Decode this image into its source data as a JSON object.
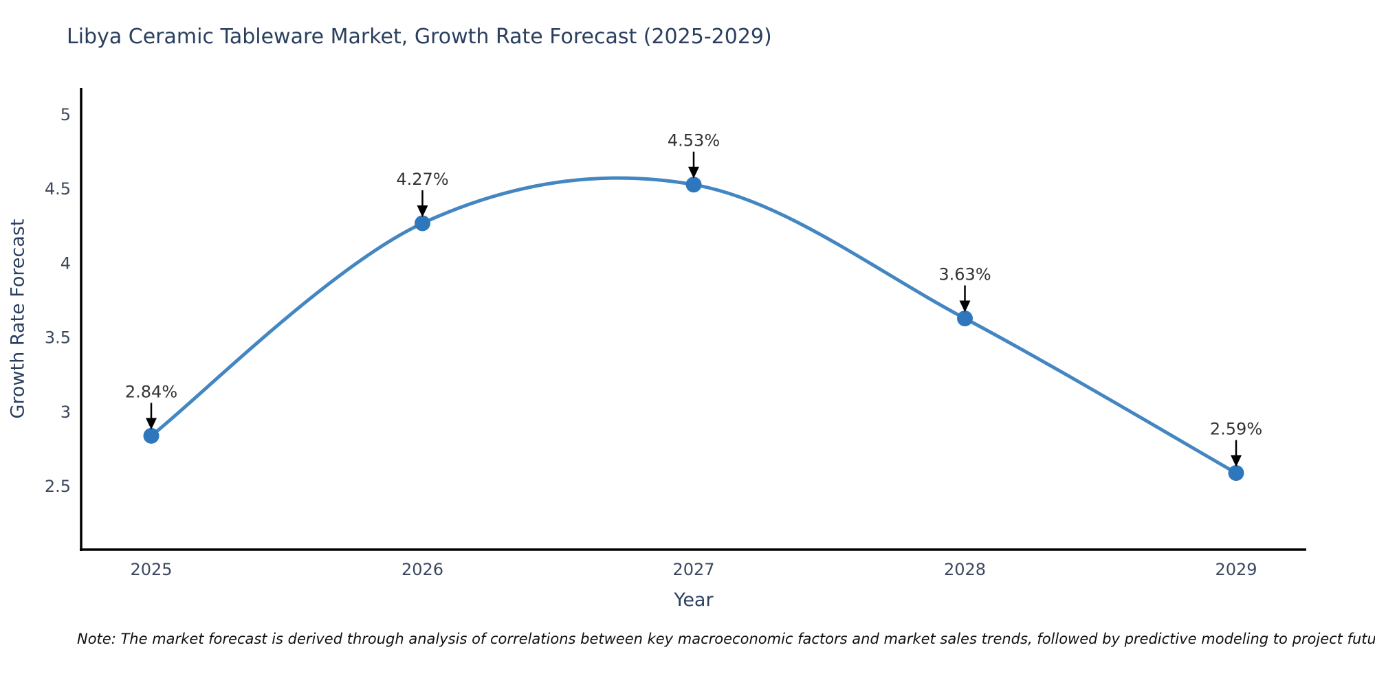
{
  "title": "Libya Ceramic Tableware Market, Growth Rate Forecast (2025-2029)",
  "x_axis_label": "Year",
  "y_axis_label": "Growth Rate Forecast",
  "note": "Note: The market forecast is derived through analysis of correlations between key macroeconomic factors and market sales trends, followed by predictive modeling to project future sales",
  "colors": {
    "line": "#4386c2",
    "marker": "#2f77bd",
    "axis": "#000000",
    "arrow": "#000000",
    "title_text": "#2a3f5f",
    "tick_text": "#3b485e",
    "annotation_text": "#333333",
    "background": "#ffffff"
  },
  "chart_data": {
    "type": "line",
    "line_shape": "spline",
    "title": "Libya Ceramic Tableware Market, Growth Rate Forecast (2025-2029)",
    "xlabel": "Year",
    "ylabel": "Growth Rate Forecast",
    "categories": [
      "2025",
      "2026",
      "2027",
      "2028",
      "2029"
    ],
    "x": [
      2025,
      2026,
      2027,
      2028,
      2029
    ],
    "values": [
      2.84,
      4.27,
      4.53,
      3.63,
      2.59
    ],
    "point_labels": [
      "2.84%",
      "4.27%",
      "4.53%",
      "3.63%",
      "2.59%"
    ],
    "yticks": [
      5,
      4.5,
      4,
      3.5,
      3,
      2.5
    ],
    "ytick_labels": [
      "5",
      "4.5",
      "4",
      "3.5",
      "3",
      "2.5"
    ],
    "ylim": [
      2.08,
      5.18
    ],
    "grid": false,
    "legend": "none",
    "annotations": "value labels with downward arrows above each point"
  }
}
